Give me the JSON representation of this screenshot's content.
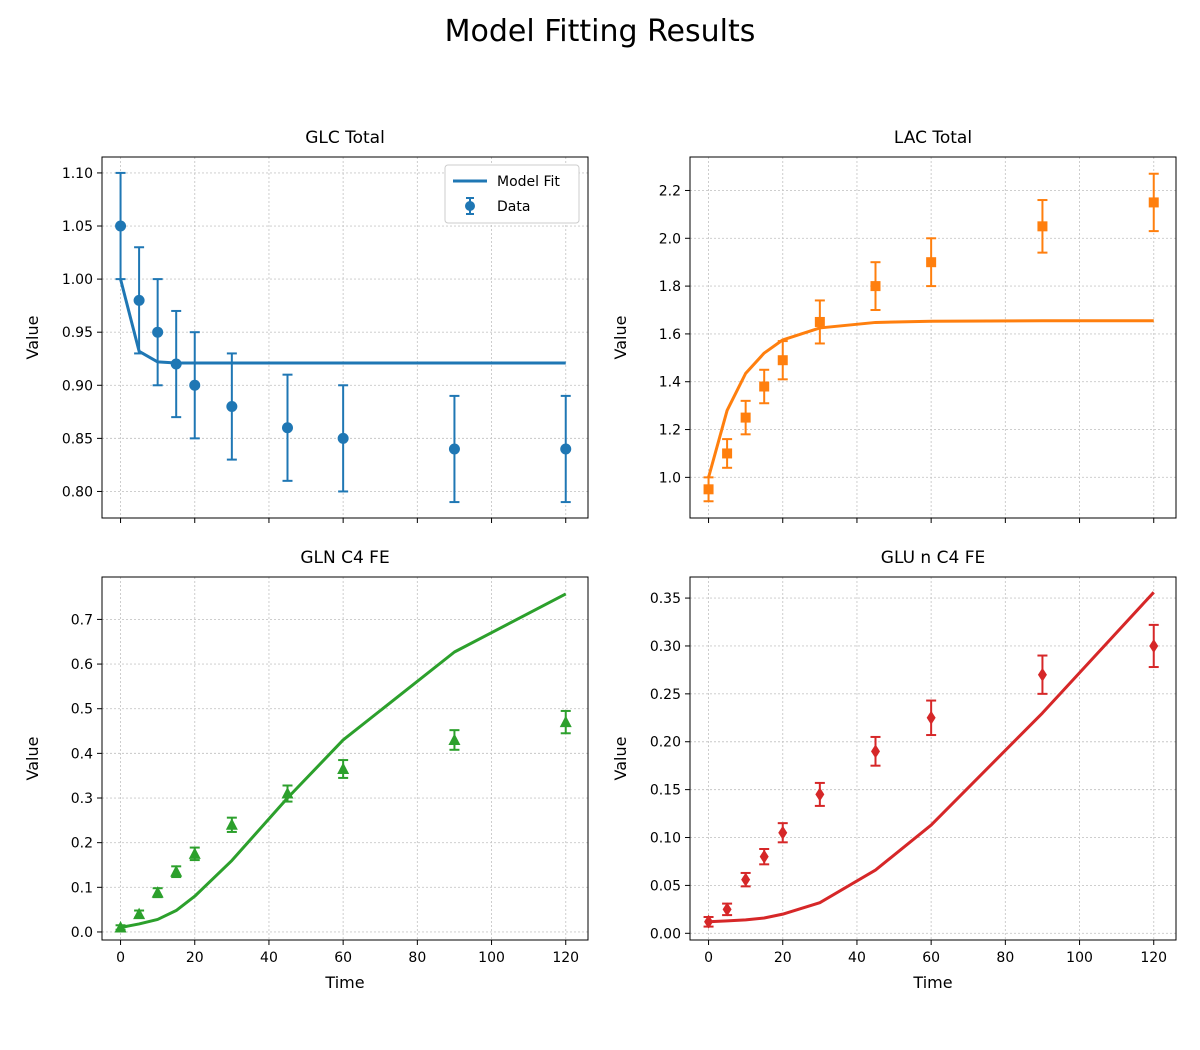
{
  "title": "Model Fitting Results",
  "chart_data": [
    {
      "type": "line",
      "title": "GLC Total",
      "xlabel": "",
      "ylabel": "Value",
      "xlim": [
        -5,
        126
      ],
      "ylim": [
        0.775,
        1.115
      ],
      "xticks": [
        0,
        20,
        40,
        60,
        80,
        100,
        120
      ],
      "show_xtick_labels": false,
      "yticks": [
        0.8,
        0.85,
        0.9,
        0.95,
        1.0,
        1.05,
        1.1
      ],
      "ytick_labels": [
        "0.80",
        "0.85",
        "0.90",
        "0.95",
        "1.00",
        "1.05",
        "1.10"
      ],
      "grid": true,
      "color": "#1f77b4",
      "marker": "circle",
      "legend": {
        "position": "top-right",
        "fit_label": "Model Fit",
        "data_label": "Data"
      },
      "series": [
        {
          "name": "Model Fit",
          "kind": "line",
          "x": [
            0,
            5,
            10,
            15,
            20,
            30,
            45,
            60,
            90,
            120
          ],
          "y": [
            1.0,
            0.932,
            0.922,
            0.921,
            0.921,
            0.921,
            0.921,
            0.921,
            0.921,
            0.921
          ]
        },
        {
          "name": "Data",
          "kind": "errorbar",
          "x": [
            0,
            5,
            10,
            15,
            20,
            30,
            45,
            60,
            90,
            120
          ],
          "y": [
            1.05,
            0.98,
            0.95,
            0.92,
            0.9,
            0.88,
            0.86,
            0.85,
            0.84,
            0.84
          ],
          "err": [
            0.05,
            0.05,
            0.05,
            0.05,
            0.05,
            0.05,
            0.05,
            0.05,
            0.05,
            0.05
          ]
        }
      ]
    },
    {
      "type": "line",
      "title": "LAC Total",
      "xlabel": "",
      "ylabel": "Value",
      "xlim": [
        -5,
        126
      ],
      "ylim": [
        0.83,
        2.34
      ],
      "xticks": [
        0,
        20,
        40,
        60,
        80,
        100,
        120
      ],
      "show_xtick_labels": false,
      "yticks": [
        1.0,
        1.2,
        1.4,
        1.6,
        1.8,
        2.0,
        2.2
      ],
      "ytick_labels": [
        "1.0",
        "1.2",
        "1.4",
        "1.6",
        "1.8",
        "2.0",
        "2.2"
      ],
      "grid": true,
      "color": "#ff7f0e",
      "marker": "square",
      "series": [
        {
          "name": "Model Fit",
          "kind": "line",
          "x": [
            0,
            5,
            10,
            15,
            20,
            30,
            45,
            60,
            90,
            120
          ],
          "y": [
            1.0,
            1.28,
            1.435,
            1.52,
            1.575,
            1.625,
            1.648,
            1.653,
            1.655,
            1.655
          ]
        },
        {
          "name": "Data",
          "kind": "errorbar",
          "x": [
            0,
            5,
            10,
            15,
            20,
            30,
            45,
            60,
            90,
            120
          ],
          "y": [
            0.95,
            1.1,
            1.25,
            1.38,
            1.49,
            1.65,
            1.8,
            1.9,
            2.05,
            2.15
          ],
          "err": [
            0.05,
            0.06,
            0.07,
            0.07,
            0.08,
            0.09,
            0.1,
            0.1,
            0.11,
            0.12
          ]
        }
      ]
    },
    {
      "type": "line",
      "title": "GLN C4 FE",
      "xlabel": "Time",
      "ylabel": "Value",
      "xlim": [
        -5,
        126
      ],
      "ylim": [
        -0.018,
        0.795
      ],
      "xticks": [
        0,
        20,
        40,
        60,
        80,
        100,
        120
      ],
      "show_xtick_labels": true,
      "yticks": [
        0.0,
        0.1,
        0.2,
        0.3,
        0.4,
        0.5,
        0.6,
        0.7
      ],
      "ytick_labels": [
        "0.0",
        "0.1",
        "0.2",
        "0.3",
        "0.4",
        "0.5",
        "0.6",
        "0.7"
      ],
      "grid": true,
      "color": "#2ca02c",
      "marker": "triangle",
      "series": [
        {
          "name": "Model Fit",
          "kind": "line",
          "x": [
            0,
            5,
            10,
            15,
            20,
            30,
            45,
            60,
            90,
            120
          ],
          "y": [
            0.01,
            0.018,
            0.028,
            0.048,
            0.08,
            0.16,
            0.3,
            0.43,
            0.627,
            0.757
          ]
        },
        {
          "name": "Data",
          "kind": "errorbar",
          "x": [
            0,
            5,
            10,
            15,
            20,
            30,
            45,
            60,
            90,
            120
          ],
          "y": [
            0.01,
            0.04,
            0.088,
            0.135,
            0.175,
            0.24,
            0.31,
            0.365,
            0.43,
            0.47
          ],
          "err": [
            0.005,
            0.008,
            0.01,
            0.012,
            0.014,
            0.016,
            0.018,
            0.02,
            0.022,
            0.025
          ]
        }
      ]
    },
    {
      "type": "line",
      "title": "GLU n C4 FE",
      "xlabel": "Time",
      "ylabel": "Value",
      "xlim": [
        -5,
        126
      ],
      "ylim": [
        -0.007,
        0.372
      ],
      "xticks": [
        0,
        20,
        40,
        60,
        80,
        100,
        120
      ],
      "show_xtick_labels": true,
      "yticks": [
        0.0,
        0.05,
        0.1,
        0.15,
        0.2,
        0.25,
        0.3,
        0.35
      ],
      "ytick_labels": [
        "0.00",
        "0.05",
        "0.10",
        "0.15",
        "0.20",
        "0.25",
        "0.30",
        "0.35"
      ],
      "grid": true,
      "color": "#d62728",
      "marker": "diamond",
      "series": [
        {
          "name": "Model Fit",
          "kind": "line",
          "x": [
            0,
            5,
            10,
            15,
            20,
            30,
            45,
            60,
            90,
            120
          ],
          "y": [
            0.012,
            0.013,
            0.014,
            0.016,
            0.02,
            0.032,
            0.066,
            0.113,
            0.23,
            0.356
          ]
        },
        {
          "name": "Data",
          "kind": "errorbar",
          "x": [
            0,
            5,
            10,
            15,
            20,
            30,
            45,
            60,
            90,
            120
          ],
          "y": [
            0.012,
            0.025,
            0.056,
            0.08,
            0.105,
            0.145,
            0.19,
            0.225,
            0.27,
            0.3
          ],
          "err": [
            0.005,
            0.006,
            0.007,
            0.008,
            0.01,
            0.012,
            0.015,
            0.018,
            0.02,
            0.022
          ]
        }
      ]
    }
  ]
}
